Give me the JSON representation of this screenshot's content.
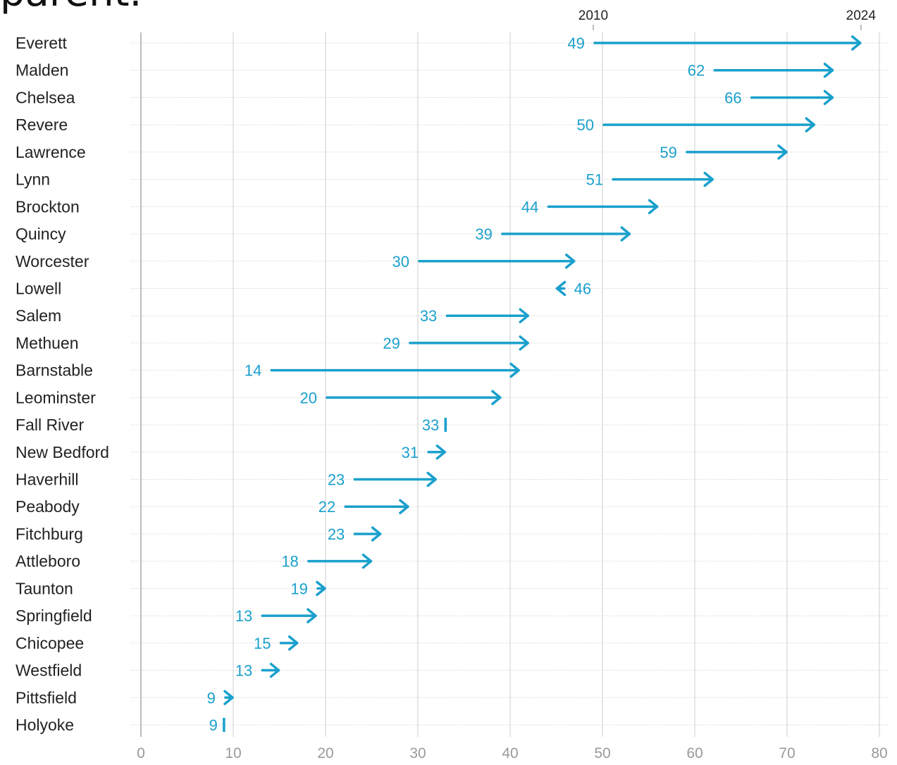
{
  "header": {
    "clipped_title": "parent."
  },
  "chart_data": {
    "type": "arrow-range",
    "title": "parent.",
    "xlabel": "",
    "ylabel": "",
    "xlim": [
      0,
      80
    ],
    "x_ticks": [
      0,
      10,
      20,
      30,
      40,
      50,
      60,
      70,
      80
    ],
    "grid": true,
    "start_year_label": "2010",
    "end_year_label": "2024",
    "start_year_marker": 49,
    "end_year_marker": 78,
    "color": "#1aa0cc",
    "series": [
      {
        "name": "2010",
        "values": [
          49,
          62,
          66,
          50,
          59,
          51,
          44,
          39,
          30,
          46,
          33,
          29,
          14,
          20,
          33,
          31,
          23,
          22,
          23,
          18,
          19,
          13,
          15,
          13,
          9,
          9
        ]
      },
      {
        "name": "2024",
        "values": [
          78,
          75,
          75,
          73,
          70,
          62,
          56,
          53,
          47,
          45,
          42,
          42,
          41,
          39,
          33,
          33,
          32,
          29,
          26,
          25,
          20,
          19,
          17,
          15,
          10,
          9
        ]
      }
    ],
    "categories": [
      "Everett",
      "Malden",
      "Chelsea",
      "Revere",
      "Lawrence",
      "Lynn",
      "Brockton",
      "Quincy",
      "Worcester",
      "Lowell",
      "Salem",
      "Methuen",
      "Barnstable",
      "Leominster",
      "Fall River",
      "New Bedford",
      "Haverhill",
      "Peabody",
      "Fitchburg",
      "Attleboro",
      "Taunton",
      "Springfield",
      "Chicopee",
      "Westfield",
      "Pittsfield",
      "Holyoke"
    ]
  }
}
